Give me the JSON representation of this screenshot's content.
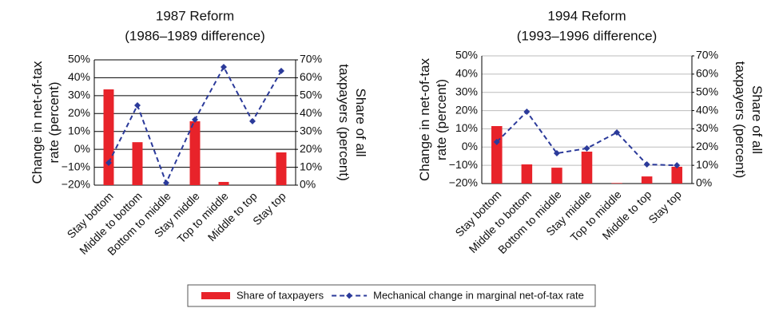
{
  "chart_data": [
    {
      "type": "bar_line",
      "title": "1987 Reform",
      "subtitle": "(1986–1989 difference)",
      "ylabel": "Change in net-of-tax rate (percent)",
      "y2label": "Share of all taxpayers (percent)",
      "categories": [
        "Stay bottom",
        "Middle to bottom",
        "Bottom to middle",
        "Stay middle",
        "Top to middle",
        "Middle to top",
        "Stay top"
      ],
      "series": [
        {
          "name": "Share of taxpayers",
          "color": "#e8232a",
          "kind": "bar",
          "axis": "y2",
          "values": [
            53.5,
            24,
            0,
            35.7,
            1.8,
            0,
            18.3
          ]
        },
        {
          "name": "Mechanical change in marginal net-of-tax rate",
          "color": "#2b3a9a",
          "kind": "line",
          "values": [
            -7.5,
            24.6,
            -18.7,
            16.6,
            46,
            15.7,
            43.8
          ]
        }
      ],
      "ylim": [
        -20,
        50
      ],
      "yticks": [
        {
          "value": -20,
          "label": "−20%"
        },
        {
          "value": -10,
          "label": "−10%"
        },
        {
          "value": 0,
          "label": "0%"
        },
        {
          "value": 10,
          "label": "10%"
        },
        {
          "value": 20,
          "label": "20%"
        },
        {
          "value": 30,
          "label": "30%"
        },
        {
          "value": 40,
          "label": "40%"
        },
        {
          "value": 50,
          "label": "50%"
        }
      ],
      "y2lim": [
        0,
        70
      ],
      "y2ticks": [
        {
          "value": 0,
          "label": "0%"
        },
        {
          "value": 10,
          "label": "10%"
        },
        {
          "value": 20,
          "label": "20%"
        },
        {
          "value": 30,
          "label": "30%"
        },
        {
          "value": 40,
          "label": "40%"
        },
        {
          "value": 50,
          "label": "50%"
        },
        {
          "value": 60,
          "label": "60%"
        },
        {
          "value": 70,
          "label": "70%"
        }
      ],
      "grid": true,
      "grid_color": "#000000"
    },
    {
      "type": "bar_line",
      "title": "1994 Reform",
      "subtitle": "(1993–1996 difference)",
      "ylabel": "Change in net-of-tax rate (percent)",
      "y2label": "Share of all taxpayers (percent)",
      "categories": [
        "Stay bottom",
        "Middle to bottom",
        "Bottom to middle",
        "Stay middle",
        "Top to middle",
        "Middle to top",
        "Stay top"
      ],
      "series": [
        {
          "name": "Share of taxpayers",
          "color": "#e8232a",
          "kind": "bar",
          "axis": "y2",
          "values": [
            31.5,
            10.5,
            8.7,
            17.5,
            0.3,
            3.9,
            9.2
          ]
        },
        {
          "name": "Mechanical change in marginal net-of-tax rate",
          "color": "#2b3a9a",
          "kind": "line",
          "values": [
            2.8,
            19.4,
            -3.4,
            -0.7,
            8,
            -9.5,
            -10
          ]
        }
      ],
      "ylim": [
        -20,
        50
      ],
      "yticks": [
        {
          "value": -20,
          "label": "−20%"
        },
        {
          "value": -10,
          "label": "−10%"
        },
        {
          "value": 0,
          "label": "0%"
        },
        {
          "value": 10,
          "label": "10%"
        },
        {
          "value": 20,
          "label": "20%"
        },
        {
          "value": 30,
          "label": "30%"
        },
        {
          "value": 40,
          "label": "40%"
        },
        {
          "value": 50,
          "label": "50%"
        }
      ],
      "y2lim": [
        0,
        70
      ],
      "y2ticks": [
        {
          "value": 0,
          "label": "0%"
        },
        {
          "value": 10,
          "label": "10%"
        },
        {
          "value": 20,
          "label": "20%"
        },
        {
          "value": 30,
          "label": "30%"
        },
        {
          "value": 40,
          "label": "40%"
        },
        {
          "value": 50,
          "label": "50%"
        },
        {
          "value": 60,
          "label": "60%"
        },
        {
          "value": 70,
          "label": "70%"
        }
      ],
      "grid": true,
      "grid_color": "#bbbbbb"
    }
  ]
}
